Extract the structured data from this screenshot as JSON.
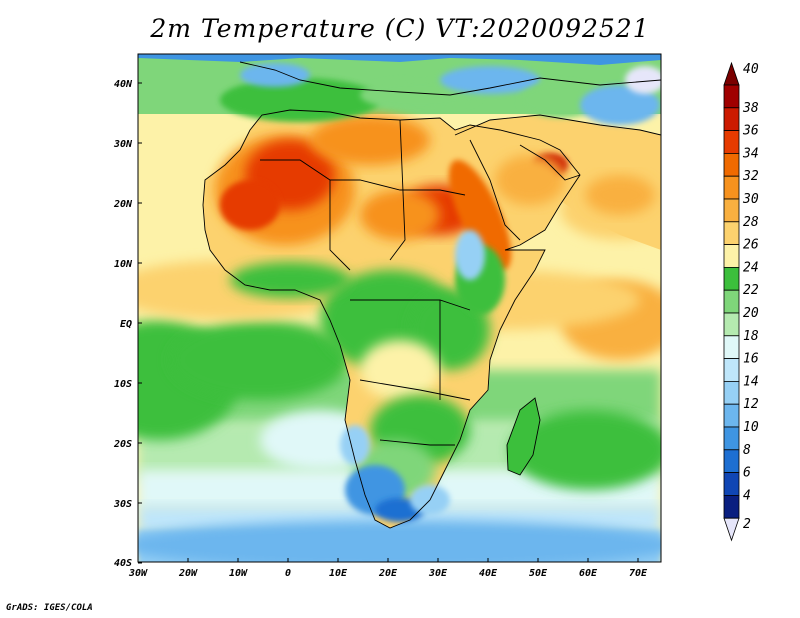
{
  "title": "2m Temperature (C) VT:2020092521",
  "footer": "GrADS: IGES/COLA",
  "lat_ticks": [
    "40N",
    "30N",
    "20N",
    "10N",
    "EQ",
    "10S",
    "20S",
    "30S",
    "40S"
  ],
  "lon_ticks": [
    "30W",
    "20W",
    "10W",
    "0",
    "10E",
    "20E",
    "30E",
    "40E",
    "50E",
    "60E",
    "70E"
  ],
  "colorbar": {
    "levels": [
      "40",
      "38",
      "36",
      "34",
      "32",
      "30",
      "28",
      "26",
      "24",
      "22",
      "20",
      "18",
      "16",
      "14",
      "12",
      "10",
      "8",
      "6",
      "4",
      "2"
    ],
    "colors": {
      "gt40": "#7a0000",
      "38-40": "#a00000",
      "36-38": "#cc1a00",
      "34-36": "#e63b00",
      "32-34": "#f06a00",
      "30-32": "#f7921e",
      "28-30": "#f9b040",
      "26-28": "#fcd26e",
      "24-26": "#fdf2a8",
      "22-24": "#3cbf3c",
      "20-22": "#7fd67a",
      "18-20": "#b5eab0",
      "16-18": "#e0f8f8",
      "14-16": "#bfe6fa",
      "12-14": "#96d0f5",
      "10-12": "#6cb6ee",
      "8-10": "#3f95e2",
      "6-8": "#1e6fd2",
      "4-6": "#1046b4",
      "2-4": "#0a1f80",
      "lt2": "#e6e6fa"
    }
  },
  "map": {
    "projection": "lat-lon",
    "lon_range": [
      -30,
      76
    ],
    "lat_range": [
      -40,
      45
    ],
    "field": "2m Temperature (C)"
  }
}
